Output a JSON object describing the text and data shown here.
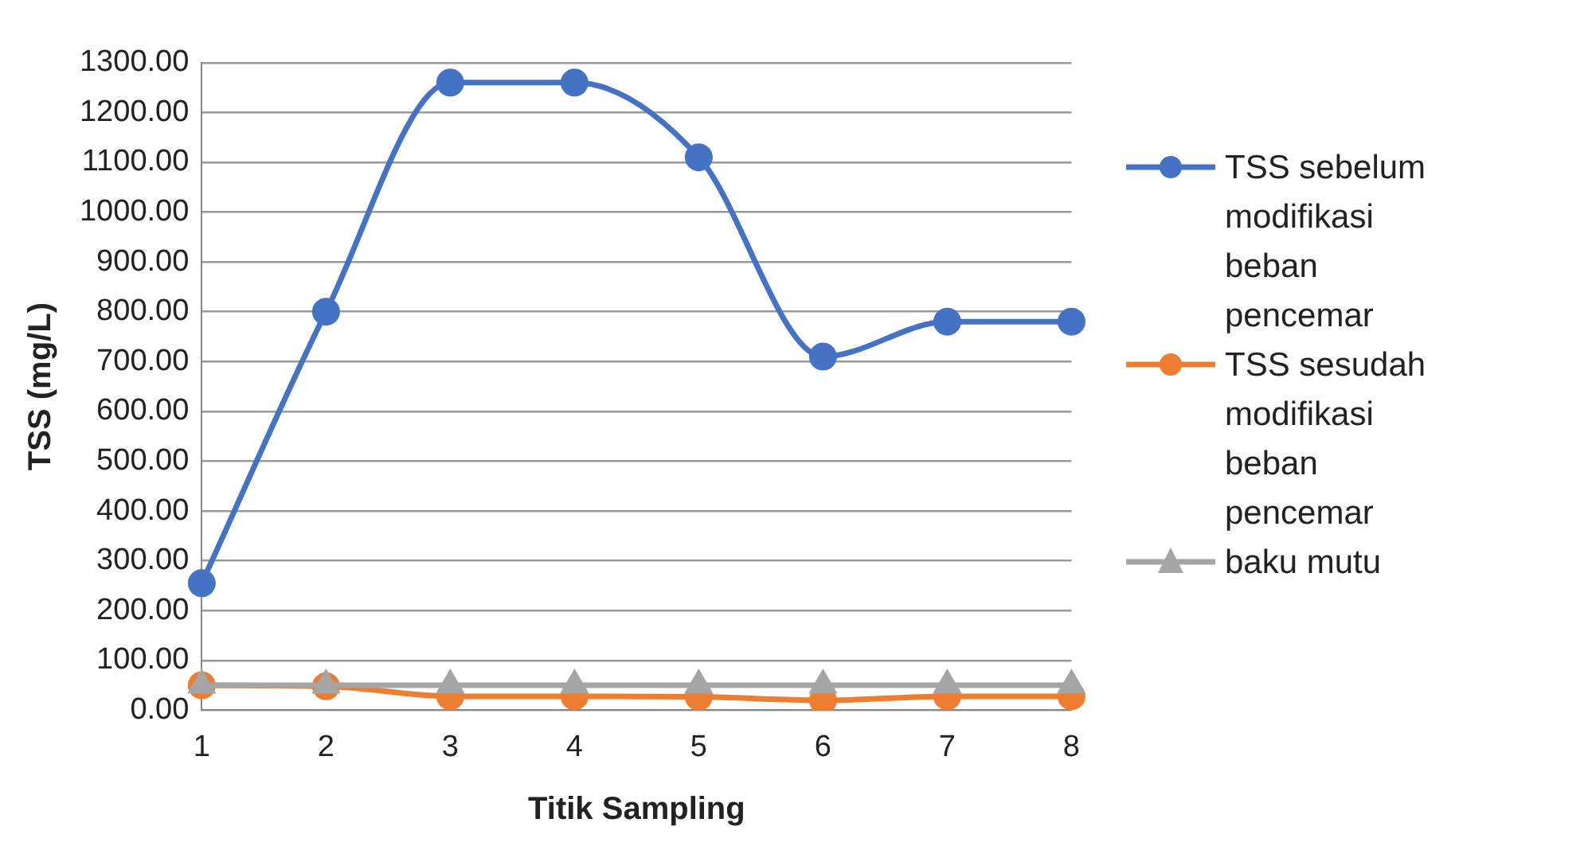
{
  "chart_data": {
    "type": "line",
    "xlabel": "Titik Sampling",
    "ylabel": "TSS (mg/L)",
    "categories": [
      "1",
      "2",
      "3",
      "4",
      "5",
      "6",
      "7",
      "8"
    ],
    "series": [
      {
        "name": "TSS sebelum modifikasi beban pencemar",
        "color": "#4472c4",
        "marker": "circle",
        "values": [
          255,
          800,
          1260,
          1260,
          1110,
          710,
          780,
          780
        ]
      },
      {
        "name": "TSS sesudah modifikasi beban pencemar",
        "color": "#ed7d31",
        "marker": "circle",
        "values": [
          50,
          48,
          28,
          28,
          27,
          20,
          28,
          28
        ]
      },
      {
        "name": "baku mutu",
        "color": "#a5a5a5",
        "marker": "triangle",
        "values": [
          50,
          50,
          50,
          50,
          50,
          50,
          50,
          50
        ]
      }
    ],
    "ylim": [
      0,
      1300
    ],
    "yticks": [
      {
        "value": 0,
        "label": "0.00"
      },
      {
        "value": 100,
        "label": "100.00"
      },
      {
        "value": 200,
        "label": "200.00"
      },
      {
        "value": 300,
        "label": "300.00"
      },
      {
        "value": 400,
        "label": "400.00"
      },
      {
        "value": 500,
        "label": "500.00"
      },
      {
        "value": 600,
        "label": "600.00"
      },
      {
        "value": 700,
        "label": "700.00"
      },
      {
        "value": 800,
        "label": "800.00"
      },
      {
        "value": 900,
        "label": "900.00"
      },
      {
        "value": 1000,
        "label": "1000.00"
      },
      {
        "value": 1100,
        "label": "1100.00"
      },
      {
        "value": 1200,
        "label": "1200.00"
      },
      {
        "value": 1300,
        "label": "1300.00"
      }
    ],
    "grid": "y",
    "legend": "right"
  }
}
